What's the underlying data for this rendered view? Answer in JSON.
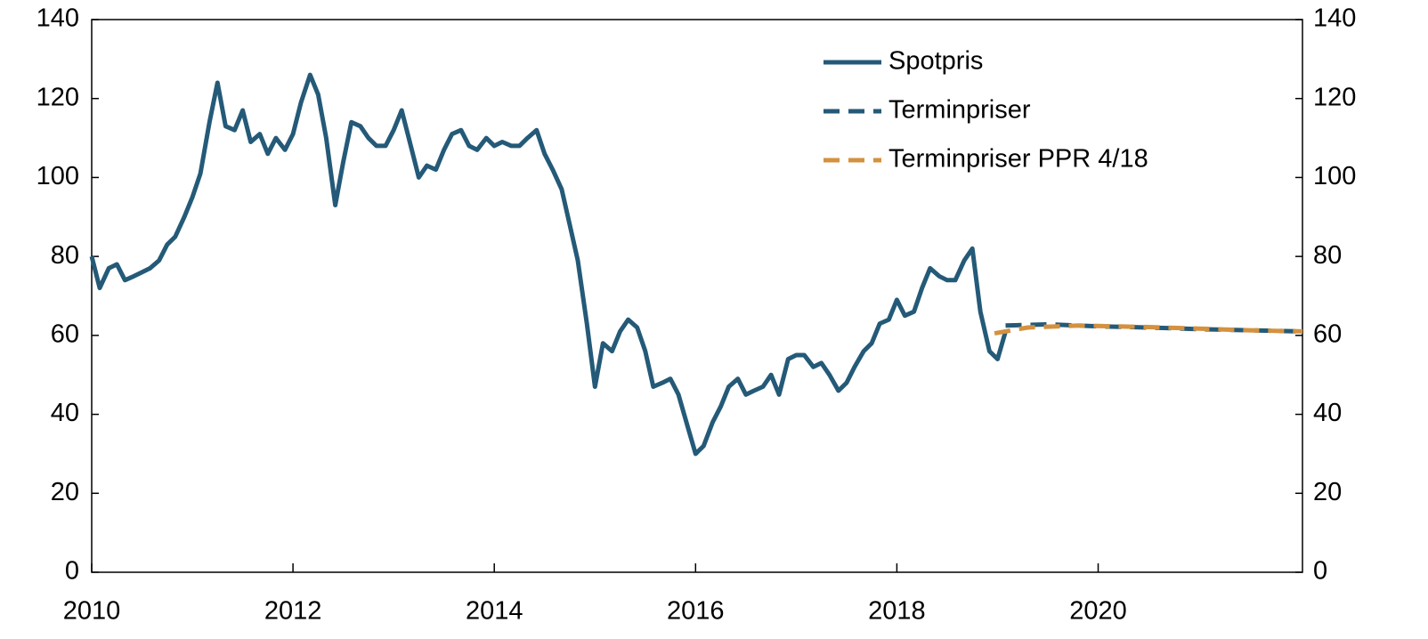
{
  "chart_data": {
    "type": "line",
    "xlim": [
      2010,
      2022.03
    ],
    "xticks": [
      2010,
      2012,
      2014,
      2016,
      2018,
      2020
    ],
    "ylim": [
      0,
      140
    ],
    "yticks": [
      0,
      20,
      40,
      60,
      80,
      100,
      120,
      140
    ],
    "y2lim": [
      0,
      140
    ],
    "y2ticks": [
      0,
      20,
      40,
      60,
      80,
      100,
      120,
      140
    ],
    "legend": "upper right",
    "series": [
      {
        "name": "Spotpris",
        "color": "#245a78",
        "style": "solid",
        "x": [
          2010.0,
          2010.08,
          2010.17,
          2010.25,
          2010.33,
          2010.42,
          2010.5,
          2010.58,
          2010.67,
          2010.75,
          2010.83,
          2010.92,
          2011.0,
          2011.08,
          2011.17,
          2011.25,
          2011.33,
          2011.42,
          2011.5,
          2011.58,
          2011.67,
          2011.75,
          2011.83,
          2011.92,
          2012.0,
          2012.08,
          2012.17,
          2012.25,
          2012.33,
          2012.42,
          2012.5,
          2012.58,
          2012.67,
          2012.75,
          2012.83,
          2012.92,
          2013.0,
          2013.08,
          2013.17,
          2013.25,
          2013.33,
          2013.42,
          2013.5,
          2013.58,
          2013.67,
          2013.75,
          2013.83,
          2013.92,
          2014.0,
          2014.08,
          2014.17,
          2014.25,
          2014.33,
          2014.42,
          2014.5,
          2014.58,
          2014.67,
          2014.75,
          2014.83,
          2014.92,
          2015.0,
          2015.08,
          2015.17,
          2015.25,
          2015.33,
          2015.42,
          2015.5,
          2015.58,
          2015.67,
          2015.75,
          2015.83,
          2015.92,
          2016.0,
          2016.08,
          2016.17,
          2016.25,
          2016.33,
          2016.42,
          2016.5,
          2016.58,
          2016.67,
          2016.75,
          2016.83,
          2016.92,
          2017.0,
          2017.08,
          2017.17,
          2017.25,
          2017.33,
          2017.42,
          2017.5,
          2017.58,
          2017.67,
          2017.75,
          2017.83,
          2017.92,
          2018.0,
          2018.08,
          2018.17,
          2018.25,
          2018.33,
          2018.42,
          2018.5,
          2018.58,
          2018.67,
          2018.75,
          2018.83,
          2018.92,
          2019.0,
          2019.08
        ],
        "values": [
          80,
          72,
          77,
          78,
          74,
          75,
          76,
          77,
          79,
          83,
          85,
          90,
          95,
          101,
          114,
          124,
          113,
          112,
          117,
          109,
          111,
          106,
          110,
          107,
          111,
          119,
          126,
          121,
          110,
          93,
          104,
          114,
          113,
          110,
          108,
          108,
          112,
          117,
          108,
          100,
          103,
          102,
          107,
          111,
          112,
          108,
          107,
          110,
          108,
          109,
          108,
          108,
          110,
          112,
          106,
          102,
          97,
          88,
          79,
          63,
          47,
          58,
          56,
          61,
          64,
          62,
          56,
          47,
          48,
          49,
          45,
          37,
          30,
          32,
          38,
          42,
          47,
          49,
          45,
          46,
          47,
          50,
          45,
          54,
          55,
          55,
          52,
          53,
          50,
          46,
          48,
          52,
          56,
          58,
          63,
          64,
          69,
          65,
          66,
          72,
          77,
          75,
          74,
          74,
          79,
          82,
          66,
          56,
          54,
          61
        ]
      },
      {
        "name": "Terminpriser",
        "color": "#245a78",
        "style": "dashed",
        "x": [
          2019.08,
          2019.5,
          2020,
          2020.5,
          2021,
          2021.5,
          2022.03
        ],
        "values": [
          62.5,
          62.8,
          62.3,
          62,
          61.6,
          61.3,
          61
        ]
      },
      {
        "name": "Terminpriser PPR 4/18",
        "color": "#d4913f",
        "style": "dashed",
        "x": [
          2018.97,
          2019.3,
          2019.8,
          2020.5,
          2021,
          2021.5,
          2022.03
        ],
        "values": [
          60.5,
          62,
          62.5,
          62.1,
          61.7,
          61.3,
          61
        ]
      }
    ]
  }
}
